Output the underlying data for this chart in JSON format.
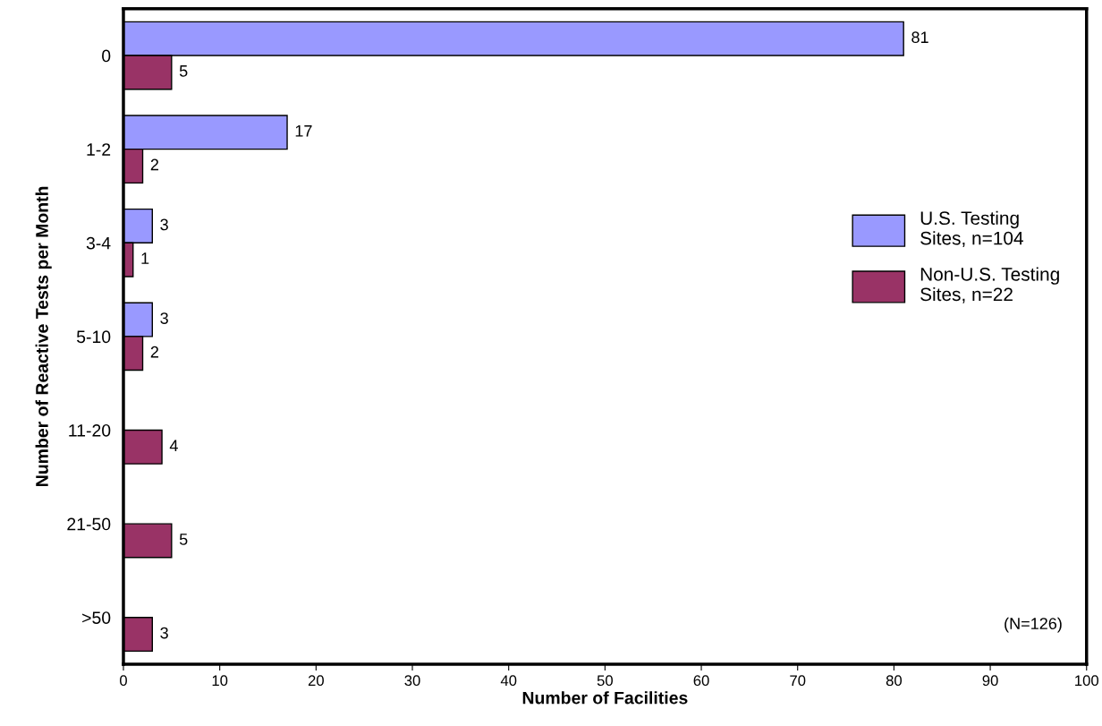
{
  "chart_data": {
    "type": "bar",
    "orientation": "horizontal",
    "xlabel": "Number of Facilities",
    "ylabel": "Number of Reactive Tests per Month",
    "categories": [
      "0",
      "1-2",
      "3-4",
      "5-10",
      "11-20",
      "21-50",
      ">50"
    ],
    "series": [
      {
        "name": "U.S. Testing\nSites, n=104",
        "color": "#9999ff",
        "values": [
          81,
          17,
          3,
          3,
          null,
          null,
          null
        ]
      },
      {
        "name": "Non-U.S. Testing\nSites, n=22",
        "color": "#993366",
        "values": [
          5,
          2,
          1,
          2,
          4,
          5,
          3
        ]
      }
    ],
    "xlim": [
      0,
      100
    ],
    "xticks": [
      0,
      10,
      20,
      30,
      40,
      50,
      60,
      70,
      80,
      90,
      100
    ],
    "data_labels": true,
    "legend": "right",
    "grid": false,
    "annotations": [
      "(N=126)"
    ]
  }
}
